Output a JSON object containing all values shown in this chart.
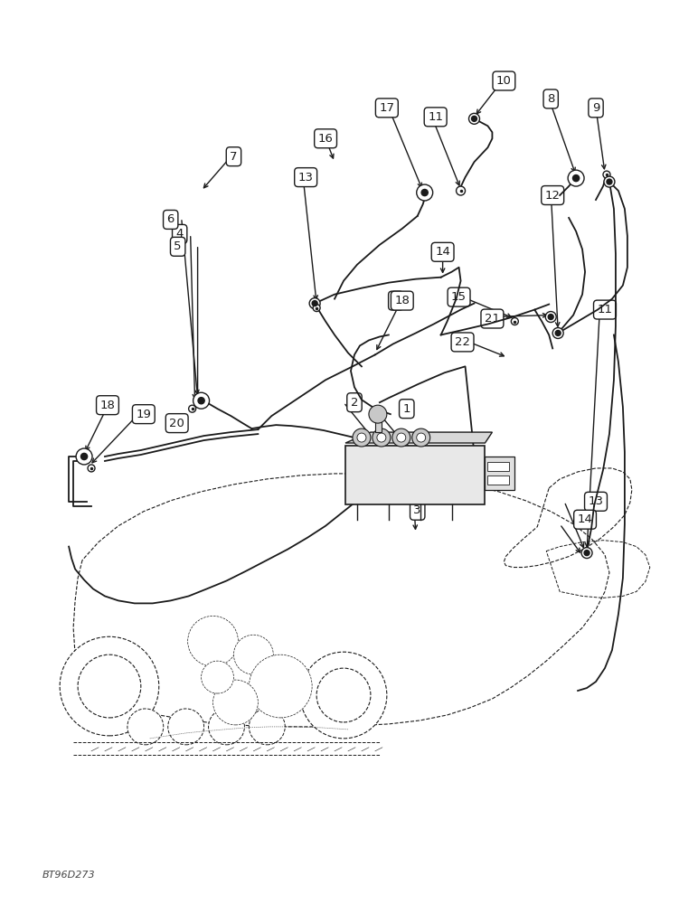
{
  "bg_color": "#ffffff",
  "line_color": "#1a1a1a",
  "label_font_size": 9.5,
  "watermark": "BT96D273",
  "fig_width": 7.72,
  "fig_height": 10.0,
  "dpi": 100,
  "xlim": [
    0,
    772
  ],
  "ylim": [
    0,
    1000
  ]
}
